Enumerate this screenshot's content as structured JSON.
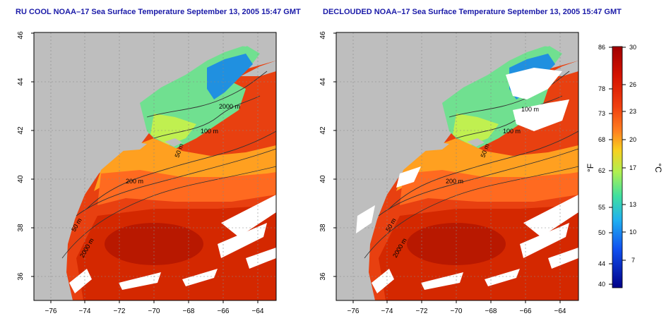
{
  "panels": [
    {
      "title": "RU COOL NOAA–17 Sea Surface Temperature September 13, 2005 15:47 GMT",
      "contour_labels": [
        "2000 m",
        "100 m",
        "50 m",
        "200 m",
        "50 m",
        "2000 m"
      ]
    },
    {
      "title": "DECLOUDED NOAA–17 Sea Surface Temperature September 13, 2005 15:47 GMT",
      "contour_labels": [
        "100 m",
        "100 m",
        "50 m",
        "200 m",
        "50 m",
        "2000 m"
      ]
    }
  ],
  "axes": {
    "lon_ticks": [
      "−76",
      "−74",
      "−72",
      "−70",
      "−68",
      "−66",
      "−64"
    ],
    "lat_ticks": [
      "36",
      "38",
      "40",
      "42",
      "44",
      "46"
    ]
  },
  "colorbar": {
    "fahrenheit_unit": "°F",
    "celsius_unit": "°C",
    "fahrenheit_ticks": [
      "86",
      "78",
      "73",
      "68",
      "62",
      "55",
      "50",
      "44",
      "40"
    ],
    "celsius_ticks": [
      "30",
      "26",
      "23",
      "20",
      "17",
      "13",
      "10",
      "7"
    ],
    "colors": [
      "#a50000",
      "#d01000",
      "#f03010",
      "#ff6020",
      "#ffa020",
      "#f0e020",
      "#c0f040",
      "#60e080",
      "#20c0d0",
      "#2070ff",
      "#1020c0",
      "#000080"
    ]
  },
  "colors": {
    "land": "#bebebe",
    "title": "#1a1aa8",
    "contour": "#333333"
  }
}
